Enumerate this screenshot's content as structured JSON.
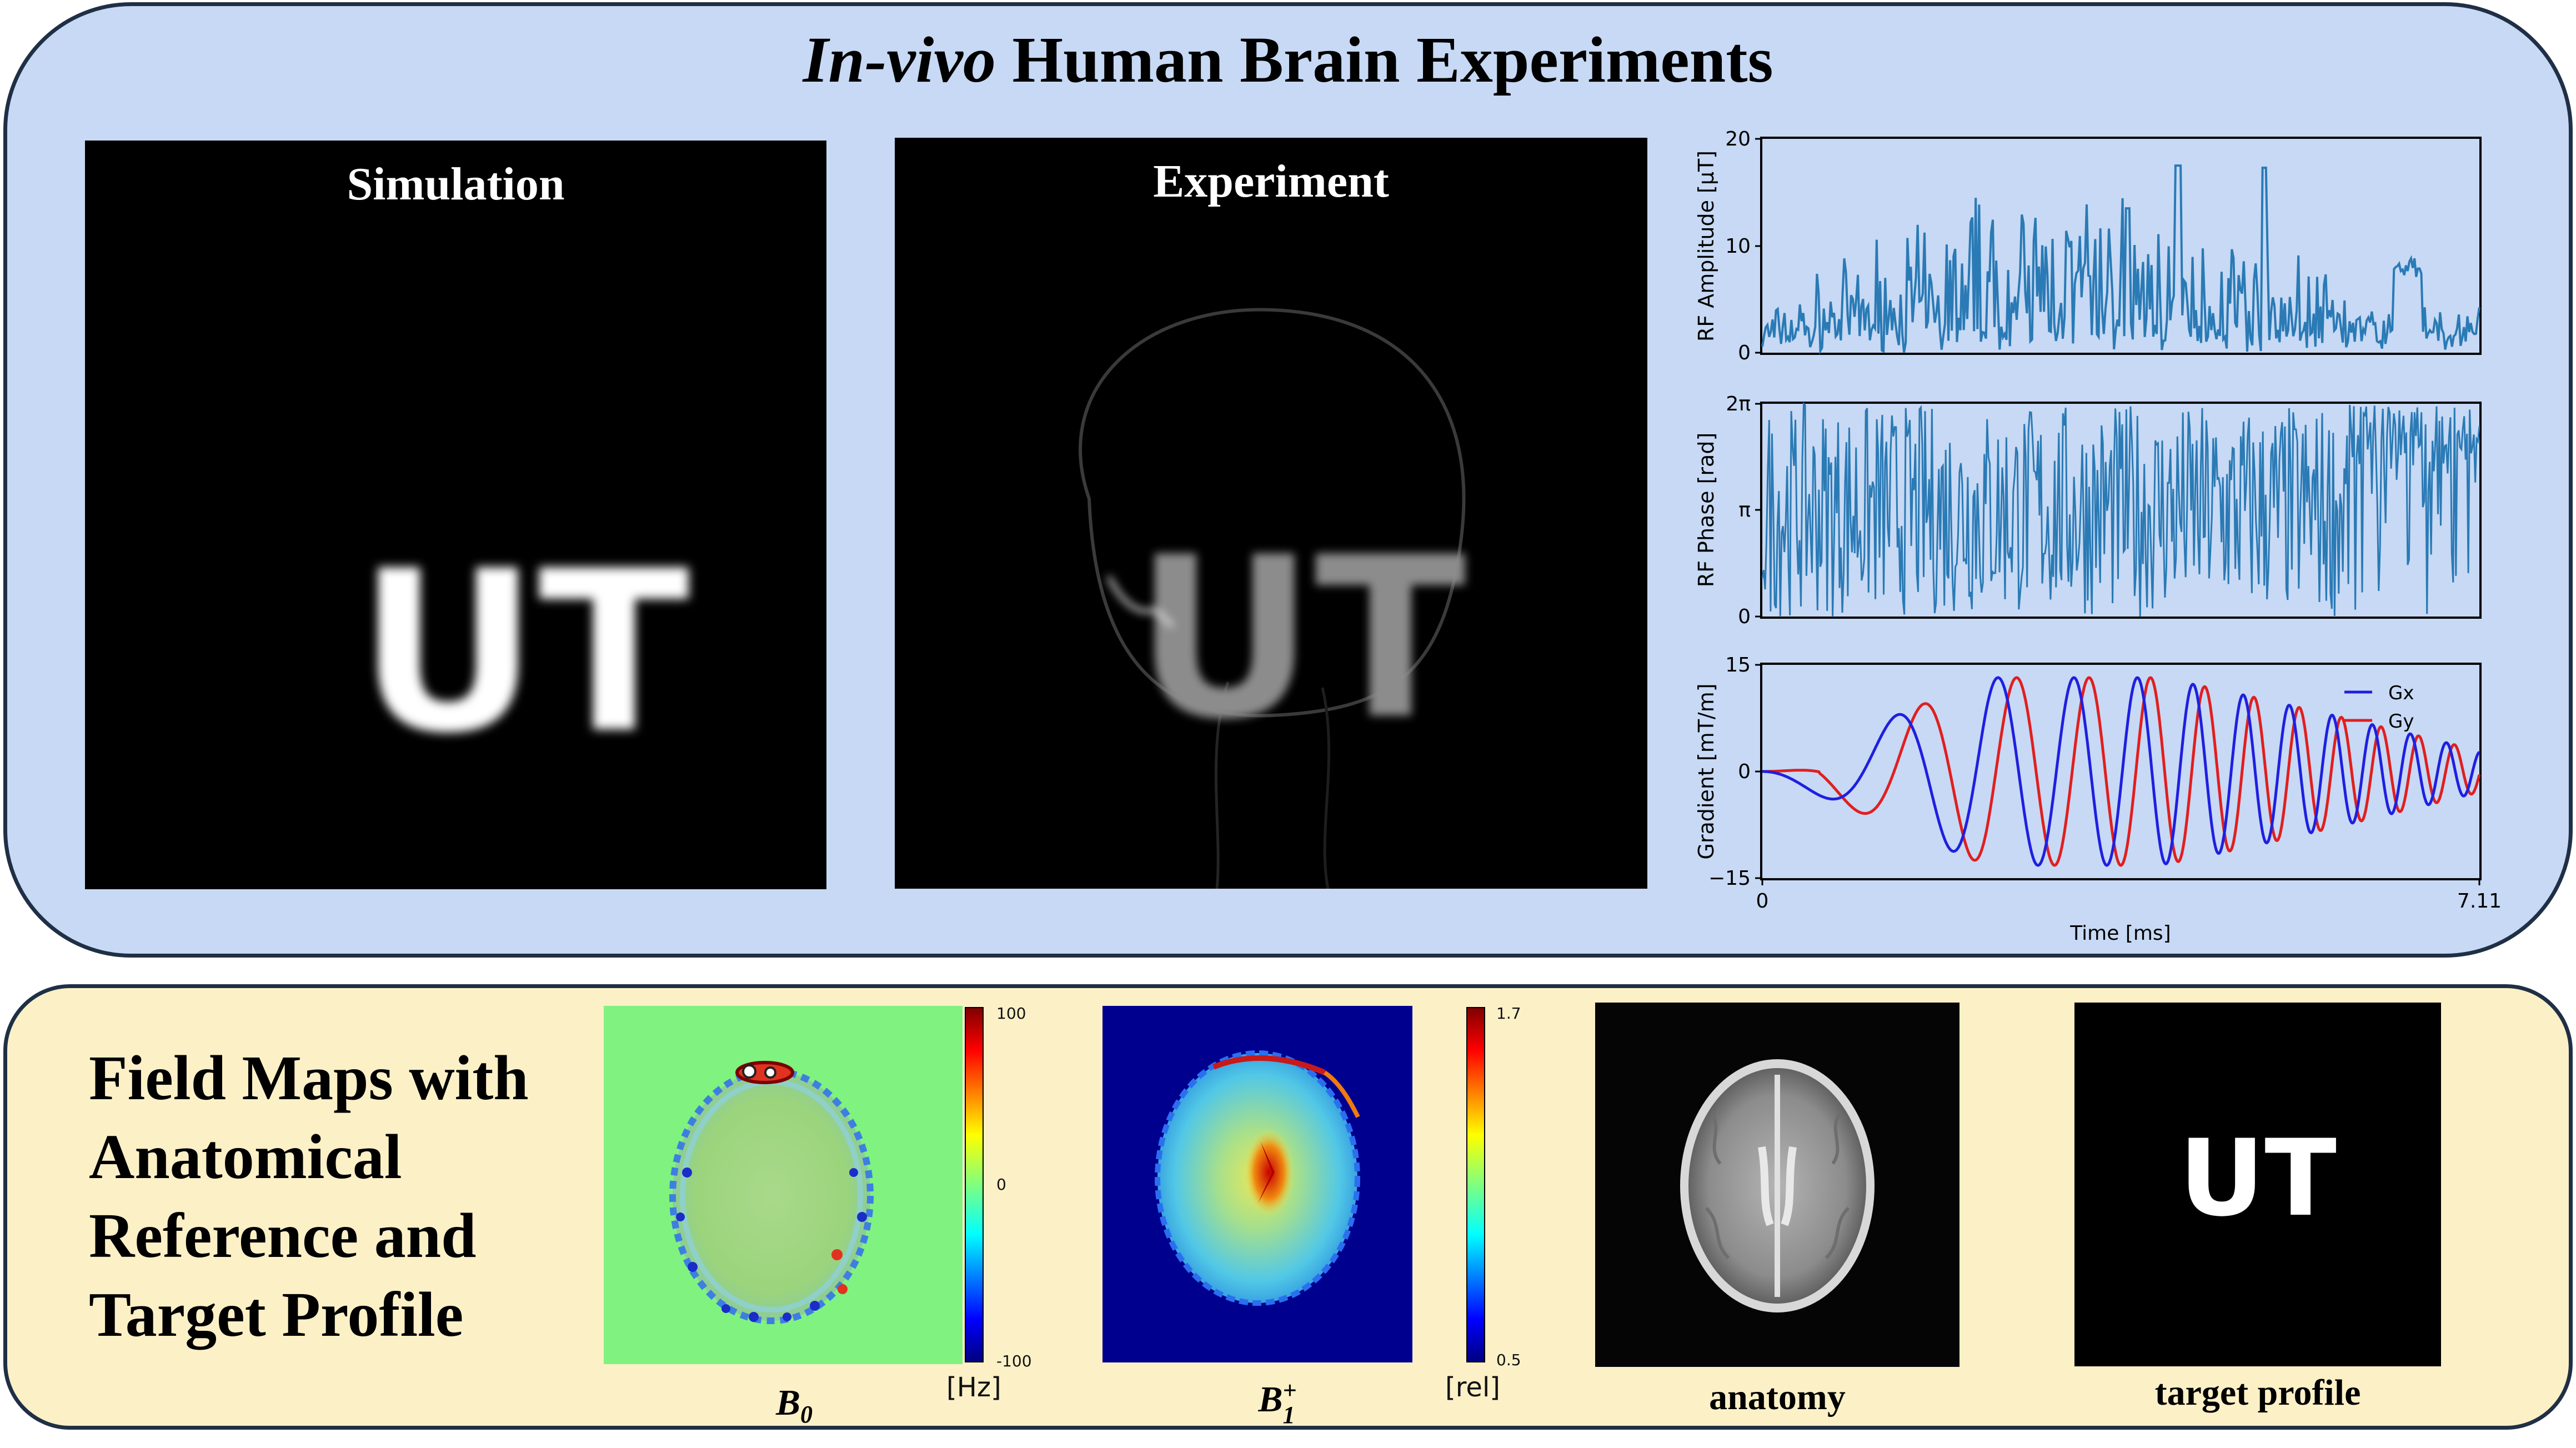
{
  "header": {
    "title_italic": "In-vivo",
    "title_rest": " Human Brain Experiments"
  },
  "images": {
    "simulation": {
      "title": "Simulation",
      "text": "UT"
    },
    "experiment": {
      "title": "Experiment",
      "text": "UT"
    }
  },
  "plots": {
    "rf_amplitude": {
      "ylabel": "RF Amplitude [μT]",
      "yticks": [
        "20",
        "10",
        "0"
      ]
    },
    "rf_phase": {
      "ylabel": "RF Phase [rad]",
      "yticks": [
        "2π",
        "π",
        "0"
      ]
    },
    "gradient": {
      "ylabel": "Gradient [mT/m]",
      "yticks": [
        "15",
        "0",
        "−15"
      ],
      "legend": [
        "Gx",
        "Gy"
      ]
    },
    "xlabel": "Time [ms]",
    "xticks": [
      "0",
      "7.11"
    ]
  },
  "field_maps": {
    "title_lines": [
      "Field Maps with",
      "Anatomical",
      "Reference and",
      "Target Profile"
    ],
    "b0": {
      "cb_ticks": [
        "100",
        "0",
        "-100"
      ],
      "unit": "[Hz]",
      "caption_base": "B",
      "caption_sub": "0"
    },
    "b1": {
      "cb_ticks": [
        "1.7",
        "0.5"
      ],
      "unit": "[rel]",
      "caption_base": "B",
      "caption_sub": "1",
      "caption_sup": "+"
    },
    "anatomy": {
      "caption": "anatomy"
    },
    "target": {
      "caption": "target profile",
      "text": "UT"
    }
  },
  "colors": {
    "top_panel": "#c7d9f4",
    "bottom_panel": "#fcf0c7",
    "trace": "#2a7ab5",
    "gx": "#1f1fe0",
    "gy": "#e01f1f"
  }
}
